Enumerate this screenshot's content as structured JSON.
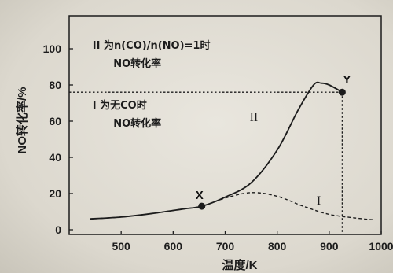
{
  "chart_data": {
    "type": "line",
    "xlabel": "温度/K",
    "ylabel": "NO转化率/%",
    "xlim": [
      400,
      1000
    ],
    "ylim": [
      0,
      100
    ],
    "x_ticks": [
      500,
      600,
      700,
      800,
      900,
      1000
    ],
    "y_ticks": [
      0,
      20,
      40,
      60,
      80,
      100
    ],
    "grid": false,
    "series": [
      {
        "name": "II",
        "style": "solid",
        "x": [
          440,
          500,
          560,
          620,
          655,
          700,
          750,
          800,
          840,
          870,
          885,
          900,
          925
        ],
        "y": [
          6,
          7,
          9,
          11.5,
          13,
          18,
          26,
          44,
          66,
          80,
          81,
          80,
          76
        ]
      },
      {
        "name": "I",
        "style": "dashed",
        "x": [
          440,
          500,
          560,
          620,
          655,
          700,
          750,
          800,
          850,
          900,
          950,
          985
        ],
        "y": [
          6,
          7,
          9,
          11.5,
          13,
          17.5,
          20.5,
          18.5,
          13,
          8.5,
          6.5,
          5.5
        ]
      }
    ],
    "points": [
      {
        "label": "X",
        "x": 655,
        "y": 13
      },
      {
        "label": "Y",
        "x": 925,
        "y": 76
      }
    ],
    "reference_lines": {
      "y": 76,
      "x": 925
    },
    "annotations": [
      {
        "id": "a1",
        "text": "II 为n(CO)/n(NO)=1时",
        "x": 445,
        "y": 100
      },
      {
        "id": "a2",
        "text": "NO转化率",
        "x": 485,
        "y": 90
      },
      {
        "id": "a3",
        "text": "I 为无CO时",
        "x": 445,
        "y": 67
      },
      {
        "id": "a4",
        "text": "NO转化率",
        "x": 485,
        "y": 57
      }
    ],
    "colors": {
      "ink": "#1c1c1c",
      "background": "#e4e1d9"
    }
  }
}
